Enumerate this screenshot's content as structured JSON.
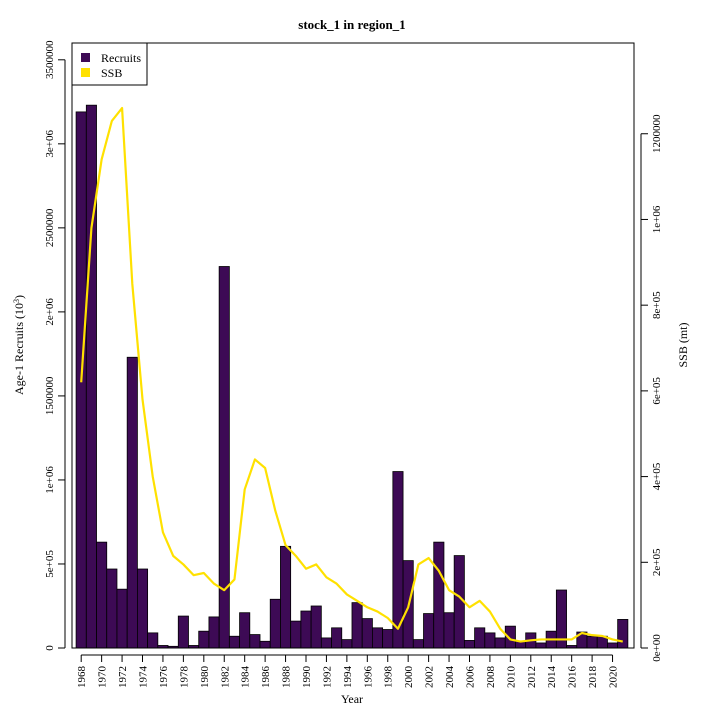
{
  "chart_data": {
    "type": "bar",
    "title": "stock_1 in region_1",
    "xlabel": "Year",
    "ylabel_left_prefix": "Age-1 Recruits (10",
    "ylabel_left_sup": "3",
    "ylabel_left_suffix": ")",
    "ylabel_right": "SSB (mt)",
    "x": [
      1968,
      1969,
      1970,
      1971,
      1972,
      1973,
      1974,
      1975,
      1976,
      1977,
      1978,
      1979,
      1980,
      1981,
      1982,
      1983,
      1984,
      1985,
      1986,
      1987,
      1988,
      1989,
      1990,
      1991,
      1992,
      1993,
      1994,
      1995,
      1996,
      1997,
      1998,
      1999,
      2000,
      2001,
      2002,
      2003,
      2004,
      2005,
      2006,
      2007,
      2008,
      2009,
      2010,
      2011,
      2012,
      2013,
      2014,
      2015,
      2016,
      2017,
      2018,
      2019,
      2020,
      2021
    ],
    "x_tick_labels": [
      "1968",
      "1970",
      "1972",
      "1974",
      "1976",
      "1978",
      "1980",
      "1982",
      "1984",
      "1986",
      "1988",
      "1990",
      "1992",
      "1994",
      "1996",
      "1998",
      "2000",
      "2002",
      "2004",
      "2006",
      "2008",
      "2010",
      "2012",
      "2014",
      "2016",
      "2018",
      "2020"
    ],
    "xlim": [
      1967.1,
      2022.1
    ],
    "ylim_left": [
      0,
      3600000
    ],
    "ylim_right": [
      0,
      1411765
    ],
    "y_left_ticks": [
      0,
      500000,
      1000000,
      1500000,
      2000000,
      2500000,
      3000000,
      3500000
    ],
    "y_left_tick_labels": [
      "0",
      "5e+05",
      "1e+06",
      "1500000",
      "2e+06",
      "2500000",
      "3e+06",
      "3500000"
    ],
    "y_right_ticks": [
      0,
      200000,
      400000,
      600000,
      800000,
      1000000,
      1200000
    ],
    "y_right_tick_labels": [
      "0e+00",
      "2e+05",
      "4e+05",
      "6e+05",
      "8e+05",
      "1e+06",
      "1200000"
    ],
    "legend_position": "top-left",
    "series": [
      {
        "name": "Recruits",
        "kind": "bar",
        "axis": "left",
        "color": "#3d0a55",
        "values": [
          3190000,
          3230000,
          630000,
          470000,
          350000,
          1730000,
          470000,
          90000,
          15000,
          10000,
          190000,
          15000,
          100000,
          185000,
          2270000,
          70000,
          210000,
          80000,
          40000,
          290000,
          605000,
          160000,
          220000,
          250000,
          60000,
          120000,
          50000,
          270000,
          175000,
          120000,
          110000,
          1050000,
          520000,
          50000,
          205000,
          630000,
          210000,
          550000,
          45000,
          120000,
          90000,
          60000,
          130000,
          40000,
          90000,
          30000,
          100000,
          345000,
          15000,
          95000,
          70000,
          70000,
          30000,
          170000
        ]
      },
      {
        "name": "SSB",
        "kind": "line",
        "axis": "right",
        "color": "#ffe100",
        "values": [
          620000,
          980000,
          1140000,
          1230000,
          1260000,
          850000,
          580000,
          400000,
          270000,
          215000,
          195000,
          170000,
          175000,
          150000,
          135000,
          160000,
          370000,
          440000,
          420000,
          320000,
          240000,
          215000,
          185000,
          195000,
          165000,
          150000,
          125000,
          110000,
          95000,
          85000,
          70000,
          45000,
          95000,
          195000,
          210000,
          180000,
          135000,
          120000,
          95000,
          110000,
          85000,
          45000,
          20000,
          15000,
          18000,
          20000,
          20000,
          20000,
          20000,
          35000,
          30000,
          28000,
          20000,
          15000
        ]
      }
    ]
  }
}
